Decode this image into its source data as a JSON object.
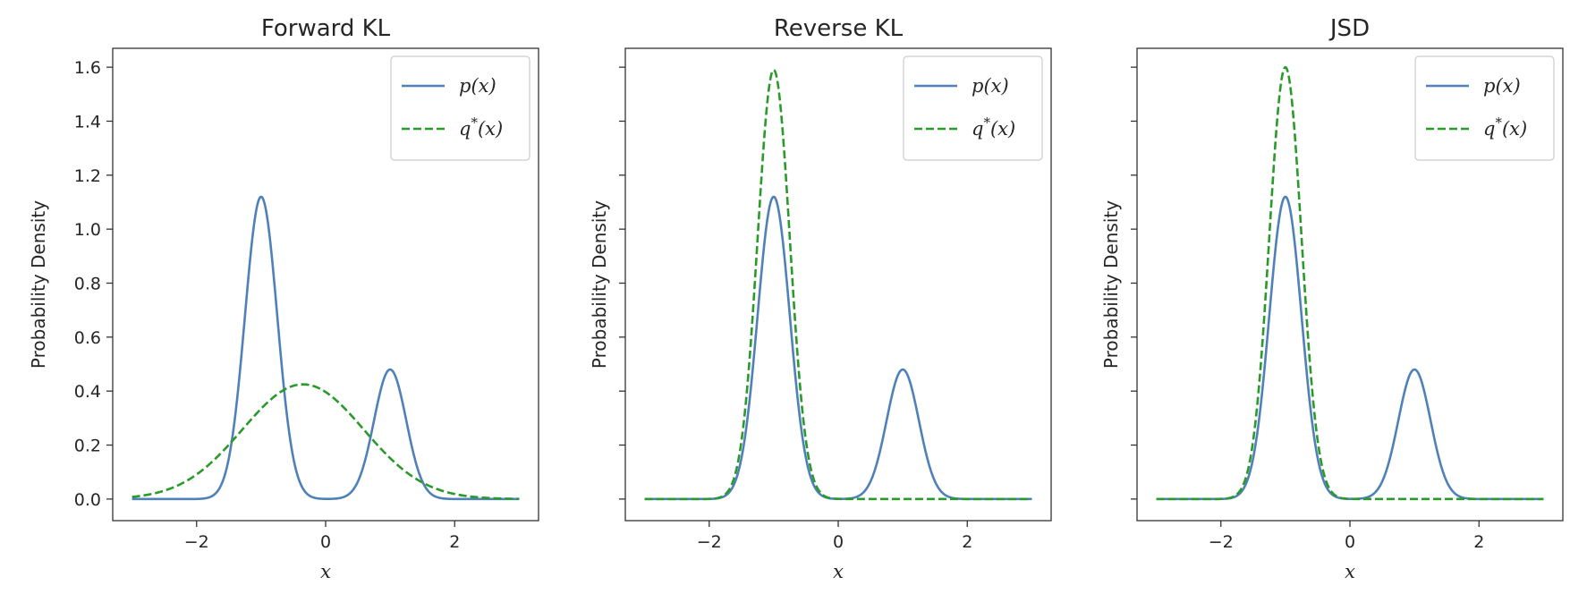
{
  "figure": {
    "ylabel": "Probability Density",
    "xlabel": "x",
    "xlim": [
      -3.3,
      3.3
    ],
    "ylim": [
      -0.08,
      1.67
    ],
    "xticks": [
      -2,
      0,
      2
    ],
    "xtick_labels": [
      "−2",
      "0",
      "2"
    ],
    "yticks": [
      0.0,
      0.2,
      0.4,
      0.6,
      0.8,
      1.0,
      1.2,
      1.4,
      1.6
    ],
    "ytick_labels": [
      "0.0",
      "0.2",
      "0.4",
      "0.6",
      "0.8",
      "1.0",
      "1.2",
      "1.4",
      "1.6"
    ],
    "colors": {
      "p": "#4f81b8",
      "q": "#2a9a2a"
    }
  },
  "chart_data": [
    {
      "type": "line",
      "title": "Forward KL",
      "xlabel": "x",
      "ylabel": "Probability Density",
      "xlim": [
        -3.3,
        3.3
      ],
      "ylim": [
        -0.08,
        1.67
      ],
      "legend": "top-right",
      "grid": false,
      "x_range": [
        -3,
        3
      ],
      "series": [
        {
          "name": "p(x)",
          "style": "solid",
          "color": "#4f81b8",
          "components": [
            {
              "mu": -1.0,
              "sigma": 0.25,
              "amplitude": 1.12
            },
            {
              "mu": 1.0,
              "sigma": 0.25,
              "amplitude": 0.48
            }
          ]
        },
        {
          "name": "q*(x)",
          "style": "dashed",
          "color": "#2a9a2a",
          "components": [
            {
              "mu": -0.35,
              "sigma": 0.94,
              "amplitude": 0.425
            }
          ]
        }
      ]
    },
    {
      "type": "line",
      "title": "Reverse KL",
      "xlabel": "x",
      "ylabel": "Probability Density",
      "xlim": [
        -3.3,
        3.3
      ],
      "ylim": [
        -0.08,
        1.67
      ],
      "legend": "top-right",
      "grid": false,
      "x_range": [
        -3,
        3
      ],
      "series": [
        {
          "name": "p(x)",
          "style": "solid",
          "color": "#4f81b8",
          "components": [
            {
              "mu": -1.0,
              "sigma": 0.25,
              "amplitude": 1.12
            },
            {
              "mu": 1.0,
              "sigma": 0.25,
              "amplitude": 0.48
            }
          ]
        },
        {
          "name": "q*(x)",
          "style": "dashed",
          "color": "#2a9a2a",
          "components": [
            {
              "mu": -1.0,
              "sigma": 0.25,
              "amplitude": 1.59
            }
          ]
        }
      ]
    },
    {
      "type": "line",
      "title": "JSD",
      "xlabel": "x",
      "ylabel": "Probability Density",
      "xlim": [
        -3.3,
        3.3
      ],
      "ylim": [
        -0.08,
        1.67
      ],
      "legend": "top-right",
      "grid": false,
      "x_range": [
        -3,
        3
      ],
      "series": [
        {
          "name": "p(x)",
          "style": "solid",
          "color": "#4f81b8",
          "components": [
            {
              "mu": -1.0,
              "sigma": 0.25,
              "amplitude": 1.12
            },
            {
              "mu": 1.0,
              "sigma": 0.25,
              "amplitude": 0.48
            }
          ]
        },
        {
          "name": "q*(x)",
          "style": "dashed",
          "color": "#2a9a2a",
          "components": [
            {
              "mu": -1.0,
              "sigma": 0.25,
              "amplitude": 1.6
            }
          ]
        }
      ]
    }
  ]
}
